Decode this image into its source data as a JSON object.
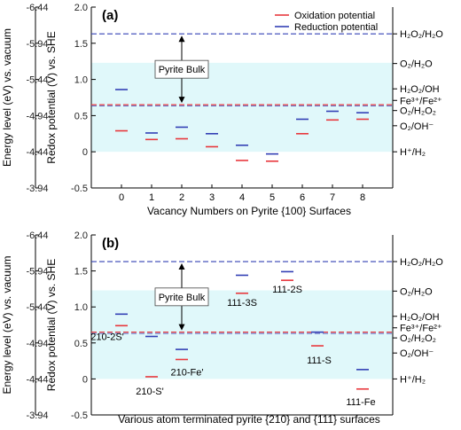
{
  "chart_data": [
    {
      "type": "scatter",
      "panel_label": "(a)",
      "xlabel": "Vacancy Numbers on Pyrite {100} Surfaces",
      "ylabel": "Redox potential (V) vs. SHE",
      "ylabel_left": "Energy level (eV) vs. vacuum",
      "xlim": [
        -1,
        9
      ],
      "ylim": [
        -0.5,
        2.0
      ],
      "x_ticks": [
        0,
        1,
        2,
        3,
        4,
        5,
        6,
        7,
        8
      ],
      "y_ticks": [
        -0.5,
        0,
        0.5,
        1.0,
        1.5,
        2.0
      ],
      "y_tick_labels": [
        "-0.5",
        "0",
        "0.5",
        "1.0",
        "1.5",
        "2.0"
      ],
      "left_axis_ticks": [
        -3.94,
        -4.44,
        -4.94,
        -5.44,
        -5.94,
        -6.44
      ],
      "left_axis_labels": [
        "-3.94",
        "-4.44",
        "-4.94",
        "-5.44",
        "-5.94",
        "-6.44"
      ],
      "legend_position": "top-right",
      "shaded_band": [
        0.0,
        1.23
      ],
      "series": [
        {
          "name": "Oxidation potential",
          "color": "#e8383d",
          "x": [
            0,
            1,
            2,
            3,
            4,
            5,
            6,
            7,
            8
          ],
          "y": [
            0.29,
            0.17,
            0.18,
            0.07,
            -0.12,
            -0.13,
            0.25,
            0.44,
            0.45
          ]
        },
        {
          "name": "Reduction potential",
          "color": "#3340b5",
          "x": [
            0,
            1,
            2,
            3,
            4,
            5,
            6,
            7,
            8
          ],
          "y": [
            0.86,
            0.26,
            0.34,
            0.25,
            0.09,
            -0.03,
            0.45,
            0.56,
            0.54
          ]
        }
      ],
      "reference_lines": [
        {
          "label": "H₂O₂/H₂O",
          "y": 1.63,
          "style": "dashed",
          "color": "#3340b5",
          "draw_line": true
        },
        {
          "label": "O₂/H₂O",
          "y": 1.22
        },
        {
          "label": "H₂O₂/OH",
          "y": 0.87
        },
        {
          "label": "Fe³⁺/Fe²⁺",
          "y": 0.71
        },
        {
          "label": "O₂/H₂O₂",
          "y": 0.57
        },
        {
          "label": "O₂/OH⁻",
          "y": 0.36
        },
        {
          "label": "H⁺/H₂",
          "y": 0.0
        }
      ],
      "pyrite_line_y": 0.65,
      "annotation": {
        "text": "Pyrite Bulk",
        "arrow_from": 0.65,
        "arrow_to": 1.63,
        "x": 2
      }
    },
    {
      "type": "scatter",
      "panel_label": "(b)",
      "xlabel": "Various atom terminated pyrite {210} and {111} surfaces",
      "ylabel": "Redox potential (V) vs. SHE",
      "ylabel_left": "Energy level (eV) vs. vacuum",
      "xlim": [
        -1,
        9
      ],
      "ylim": [
        -0.5,
        2.0
      ],
      "y_ticks": [
        -0.5,
        0,
        0.5,
        1.0,
        1.5,
        2.0
      ],
      "y_tick_labels": [
        "-0.5",
        "0",
        "0.5",
        "1.0",
        "1.5",
        "2.0"
      ],
      "left_axis_ticks": [
        -3.94,
        -4.44,
        -4.94,
        -5.44,
        -5.94,
        -6.44
      ],
      "left_axis_labels": [
        "-3.94",
        "-4.44",
        "-4.94",
        "-5.44",
        "-5.94",
        "-6.44"
      ],
      "shaded_band": [
        0.0,
        1.23
      ],
      "surfaces": [
        {
          "label": "210-2S'",
          "x": 0,
          "oxidation": 0.74,
          "reduction": 0.9
        },
        {
          "label": "210-S'",
          "x": 1,
          "oxidation": 0.03,
          "reduction": 0.59
        },
        {
          "label": "210-Fe'",
          "x": 2,
          "oxidation": 0.27,
          "reduction": 0.41
        },
        {
          "label": "111-3S",
          "x": 4,
          "oxidation": 1.19,
          "reduction": 1.44
        },
        {
          "label": "111-2S",
          "x": 5.5,
          "oxidation": 1.37,
          "reduction": 1.49
        },
        {
          "label": "111-S",
          "x": 6.5,
          "oxidation": 0.46,
          "reduction": 0.65
        },
        {
          "label": "111-Fe",
          "x": 8,
          "oxidation": -0.14,
          "reduction": 0.13
        }
      ],
      "reference_lines": [
        {
          "label": "H₂O₂/H₂O",
          "y": 1.63,
          "style": "dashed",
          "color": "#3340b5",
          "draw_line": true
        },
        {
          "label": "O₂/H₂O",
          "y": 1.22
        },
        {
          "label": "H₂O₂/OH",
          "y": 0.87
        },
        {
          "label": "Fe³⁺/Fe²⁺",
          "y": 0.71
        },
        {
          "label": "O₂/H₂O₂",
          "y": 0.57
        },
        {
          "label": "O₂/OH⁻",
          "y": 0.36
        },
        {
          "label": "H⁺/H₂",
          "y": 0.0
        }
      ],
      "pyrite_line_y": 0.65,
      "annotation": {
        "text": "Pyrite Bulk",
        "arrow_from": 0.65,
        "arrow_to": 1.63,
        "x": 2
      }
    }
  ]
}
